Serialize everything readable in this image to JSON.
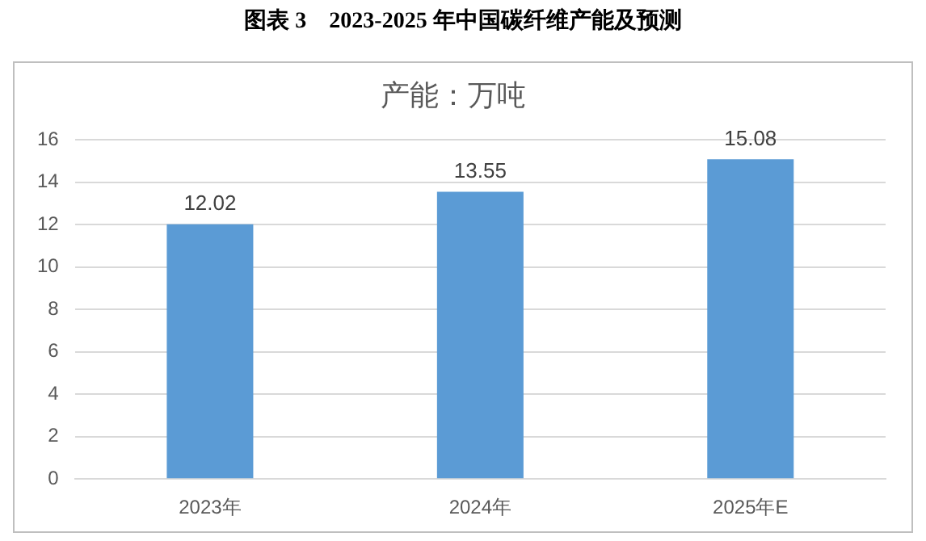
{
  "chart_data": {
    "type": "bar",
    "title": "图表 3　2023-2025 年中国碳纤维产能及预测",
    "subtitle": "产能：万吨",
    "categories": [
      "2023年",
      "2024年",
      "2025年E"
    ],
    "values": [
      12.02,
      13.55,
      15.08
    ],
    "color": "#5b9bd5",
    "ylim": [
      0,
      16
    ],
    "yticks": [
      0,
      2,
      4,
      6,
      8,
      10,
      12,
      14,
      16
    ],
    "grid": "y",
    "data_labels": true,
    "legend": false
  }
}
